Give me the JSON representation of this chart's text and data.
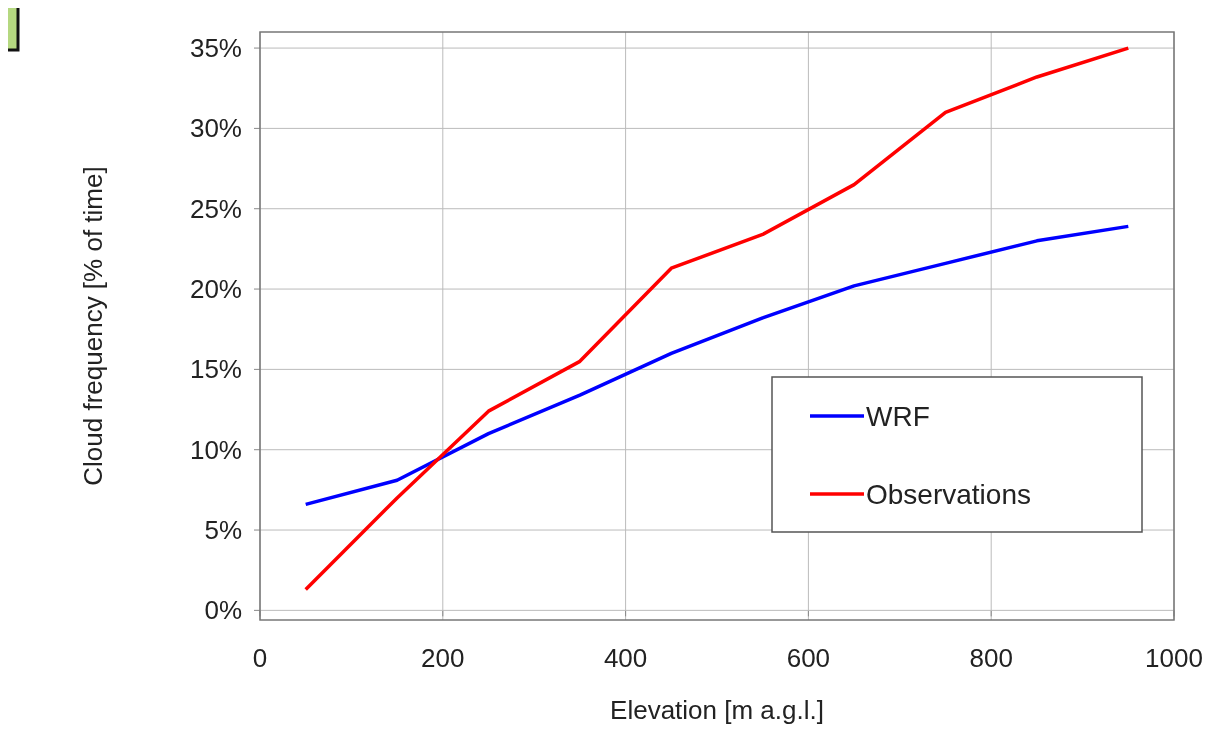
{
  "chart_data": {
    "type": "line",
    "xlabel": "Elevation [m a.g.l.]",
    "ylabel": "Cloud frequency [% of time]",
    "x": [
      50,
      150,
      250,
      350,
      450,
      550,
      650,
      750,
      850,
      950
    ],
    "series": [
      {
        "name": "WRF",
        "color": "#0000ff",
        "values": [
          6.6,
          8.1,
          11.0,
          13.4,
          16.0,
          18.2,
          20.2,
          21.6,
          23.0,
          23.9
        ]
      },
      {
        "name": "Observations",
        "color": "#ff0000",
        "values": [
          1.3,
          7.0,
          12.4,
          15.5,
          21.3,
          23.4,
          26.5,
          31.0,
          33.2,
          35.0
        ]
      }
    ],
    "xlim": [
      0,
      1000
    ],
    "xticks": [
      0,
      200,
      400,
      600,
      800,
      1000
    ],
    "ylim": [
      -0.6,
      36
    ],
    "yticks": [
      {
        "value": 0,
        "label": "0%"
      },
      {
        "value": 5,
        "label": "5%"
      },
      {
        "value": 10,
        "label": "10%"
      },
      {
        "value": 15,
        "label": "15%"
      },
      {
        "value": 20,
        "label": "20%"
      },
      {
        "value": 25,
        "label": "25%"
      },
      {
        "value": 30,
        "label": "30%"
      },
      {
        "value": 35,
        "label": "35%"
      }
    ],
    "grid": true,
    "legend": "bottom right",
    "marker": "none",
    "line_style": "solid"
  }
}
